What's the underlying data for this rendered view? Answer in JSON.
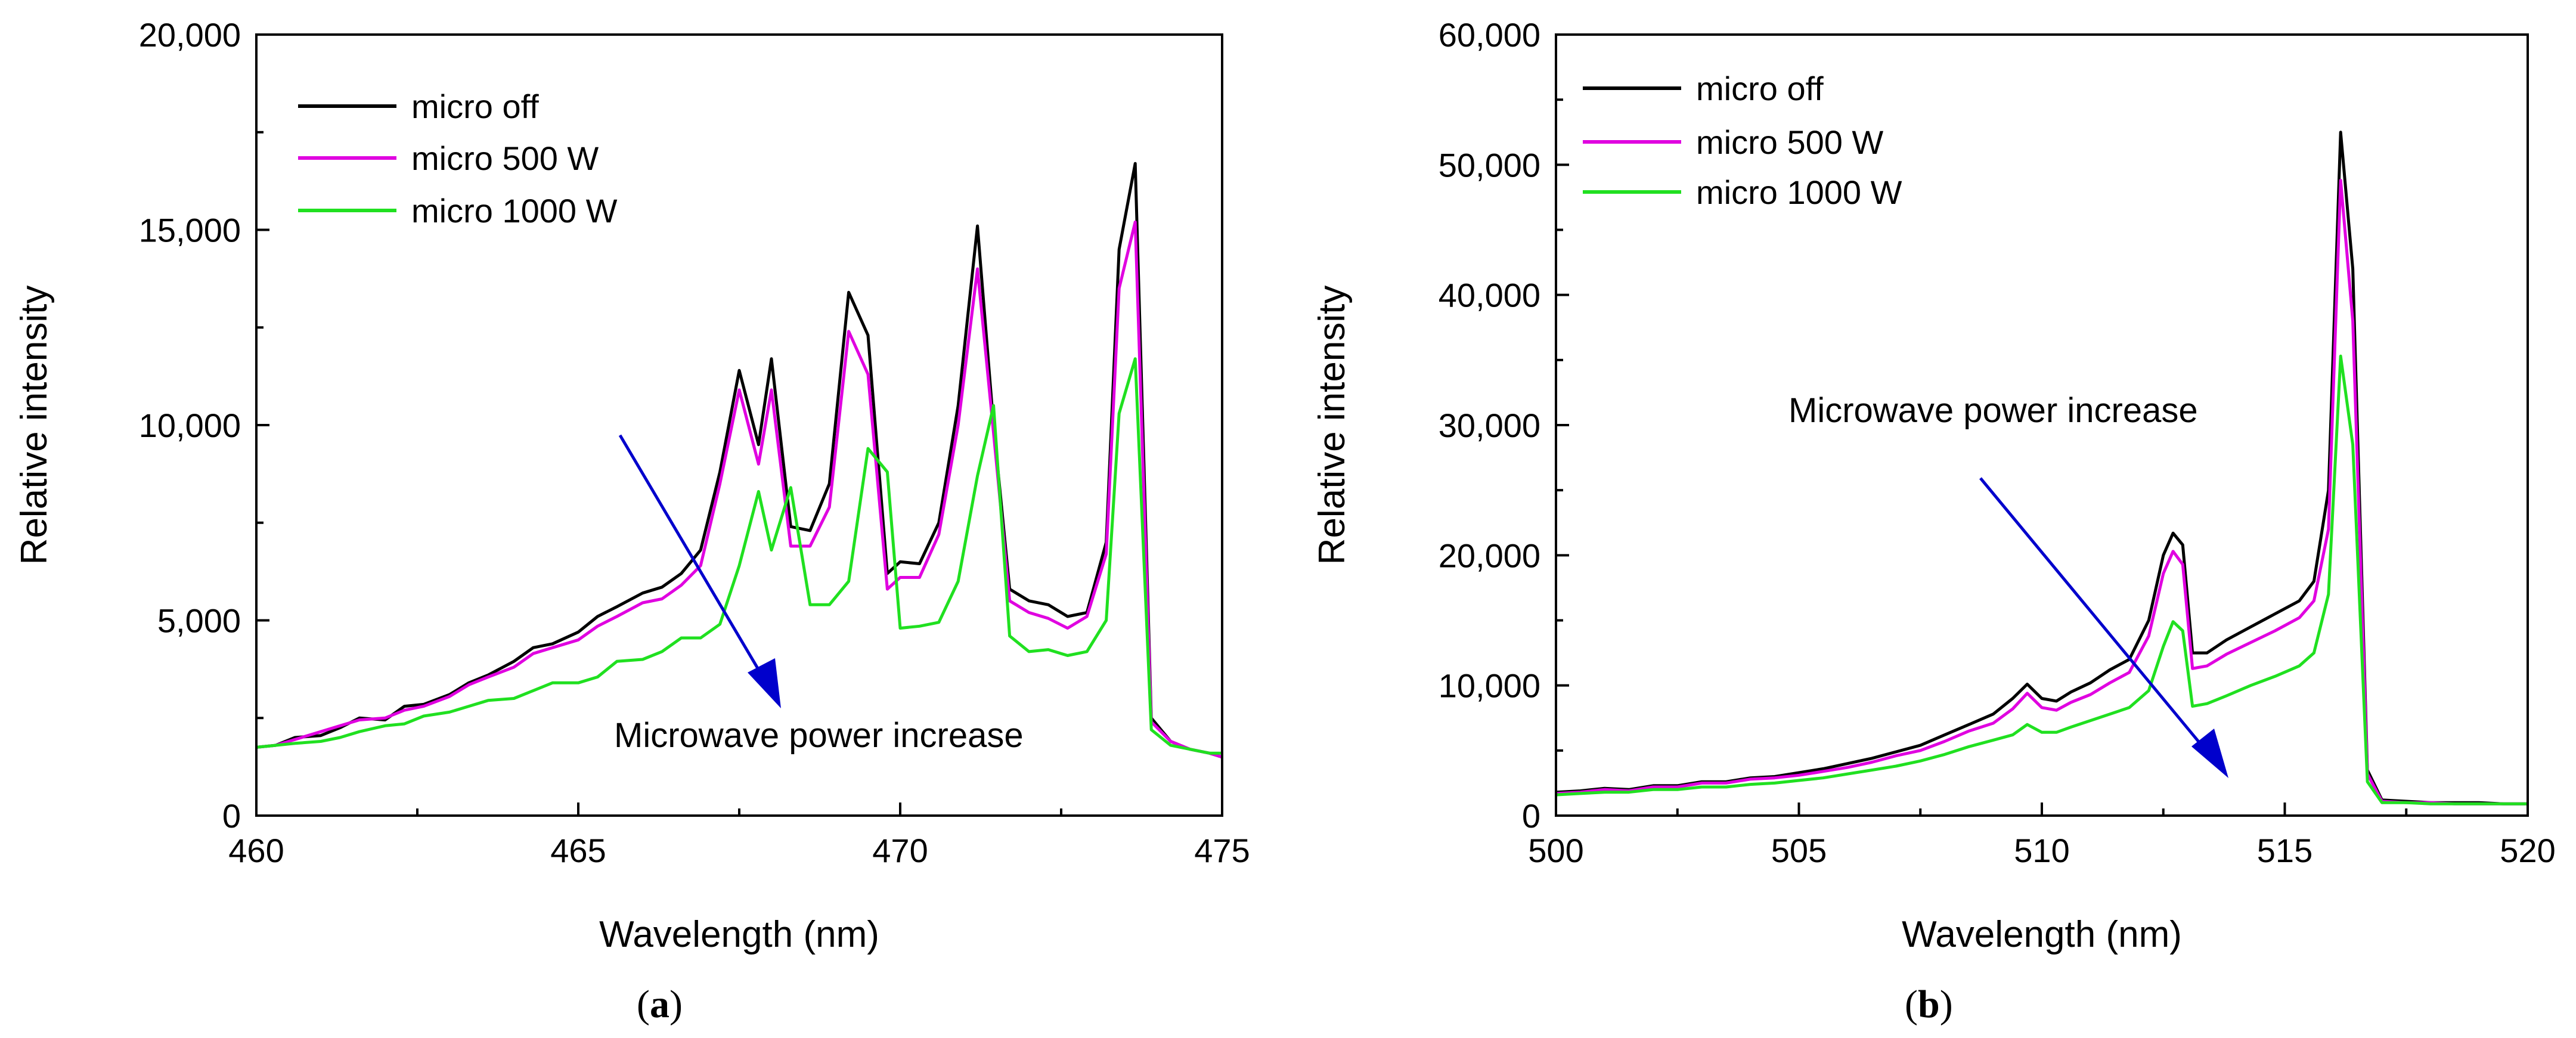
{
  "colors": {
    "micro_off": "#000000",
    "micro_500": "#e000e0",
    "micro_1000": "#20e020",
    "arrow": "#0000cc"
  },
  "chart_data": [
    {
      "type": "line",
      "panel_label": "a",
      "title": "",
      "xlabel": "Wavelength (nm)",
      "ylabel": "Relative intensity",
      "xlim": [
        460,
        475
      ],
      "ylim": [
        0,
        20000
      ],
      "xticks": [
        "460",
        "465",
        "470",
        "475"
      ],
      "yticks": [
        "0",
        "5,000",
        "10,000",
        "15,000",
        "20,000"
      ],
      "grid": false,
      "legend_position": "top-left",
      "annotation": "Microwave power increase",
      "series": [
        {
          "name": "micro off",
          "color_key": "micro_off",
          "x": [
            460.0,
            460.3,
            460.6,
            461.0,
            461.3,
            461.6,
            462.0,
            462.3,
            462.6,
            463.0,
            463.3,
            463.6,
            464.0,
            464.3,
            464.6,
            465.0,
            465.3,
            465.6,
            466.0,
            466.3,
            466.6,
            466.9,
            467.2,
            467.5,
            467.8,
            468.0,
            468.3,
            468.6,
            468.9,
            469.2,
            469.5,
            469.8,
            470.0,
            470.3,
            470.6,
            470.9,
            471.2,
            471.45,
            471.7,
            472.0,
            472.3,
            472.6,
            472.9,
            473.2,
            473.4,
            473.65,
            473.9,
            474.2,
            474.5,
            474.8,
            475.0
          ],
          "y": [
            1750,
            1800,
            2000,
            2050,
            2250,
            2500,
            2450,
            2800,
            2850,
            3100,
            3400,
            3600,
            3950,
            4300,
            4400,
            4700,
            5100,
            5350,
            5700,
            5850,
            6200,
            6800,
            8800,
            11400,
            9500,
            11700,
            7400,
            7300,
            8500,
            13400,
            12300,
            6200,
            6500,
            6450,
            7500,
            10500,
            15100,
            10000,
            5800,
            5500,
            5400,
            5100,
            5200,
            7000,
            14500,
            16700,
            2500,
            1900,
            1700,
            1600,
            1500
          ]
        },
        {
          "name": "micro 500 W",
          "color_key": "micro_500",
          "x": [
            460.0,
            460.3,
            460.6,
            461.0,
            461.3,
            461.6,
            462.0,
            462.3,
            462.6,
            463.0,
            463.3,
            463.6,
            464.0,
            464.3,
            464.6,
            465.0,
            465.3,
            465.6,
            466.0,
            466.3,
            466.6,
            466.9,
            467.2,
            467.5,
            467.8,
            468.0,
            468.3,
            468.6,
            468.9,
            469.2,
            469.5,
            469.8,
            470.0,
            470.3,
            470.6,
            470.9,
            471.2,
            471.45,
            471.7,
            472.0,
            472.3,
            472.6,
            472.9,
            473.2,
            473.4,
            473.65,
            473.9,
            474.2,
            474.5,
            474.8,
            475.0
          ],
          "y": [
            1750,
            1800,
            1950,
            2150,
            2300,
            2450,
            2500,
            2700,
            2800,
            3050,
            3350,
            3550,
            3800,
            4150,
            4300,
            4500,
            4850,
            5100,
            5450,
            5550,
            5900,
            6400,
            8500,
            10900,
            9000,
            10900,
            6900,
            6900,
            7900,
            12400,
            11300,
            5800,
            6100,
            6100,
            7200,
            10000,
            14000,
            9800,
            5500,
            5200,
            5050,
            4800,
            5100,
            6700,
            13500,
            15200,
            2400,
            1900,
            1700,
            1600,
            1500
          ]
        },
        {
          "name": "micro 1000 W",
          "color_key": "micro_1000",
          "x": [
            460.0,
            460.3,
            460.6,
            461.0,
            461.3,
            461.6,
            462.0,
            462.3,
            462.6,
            463.0,
            463.3,
            463.6,
            464.0,
            464.3,
            464.6,
            465.0,
            465.3,
            465.6,
            466.0,
            466.3,
            466.6,
            466.9,
            467.2,
            467.5,
            467.8,
            468.0,
            468.3,
            468.6,
            468.9,
            469.2,
            469.5,
            469.8,
            470.0,
            470.3,
            470.6,
            470.9,
            471.2,
            471.45,
            471.7,
            472.0,
            472.3,
            472.6,
            472.9,
            473.2,
            473.4,
            473.65,
            473.9,
            474.2,
            474.5,
            474.8,
            475.0
          ],
          "y": [
            1750,
            1800,
            1850,
            1900,
            2000,
            2150,
            2300,
            2350,
            2550,
            2650,
            2800,
            2950,
            3000,
            3200,
            3400,
            3400,
            3550,
            3950,
            4000,
            4200,
            4550,
            4550,
            4900,
            6400,
            8300,
            6800,
            8400,
            5400,
            5400,
            6000,
            9400,
            8800,
            4800,
            4850,
            4950,
            6000,
            8700,
            10500,
            4600,
            4200,
            4250,
            4100,
            4200,
            5000,
            10300,
            11700,
            2200,
            1800,
            1700,
            1600,
            1600
          ]
        }
      ]
    },
    {
      "type": "line",
      "panel_label": "b",
      "title": "",
      "xlabel": "Wavelength (nm)",
      "ylabel": "Relative intensity",
      "xlim": [
        500,
        520
      ],
      "ylim": [
        0,
        60000
      ],
      "xticks": [
        "500",
        "505",
        "510",
        "515",
        "520"
      ],
      "yticks": [
        "0",
        "10,000",
        "20,000",
        "30,000",
        "40,000",
        "50,000",
        "60,000"
      ],
      "grid": false,
      "legend_position": "top-left",
      "annotation": "Microwave power increase",
      "series": [
        {
          "name": "micro off",
          "color_key": "micro_off",
          "x": [
            500.0,
            500.5,
            501.0,
            501.5,
            502.0,
            502.5,
            503.0,
            503.5,
            504.0,
            504.5,
            505.0,
            505.5,
            506.0,
            506.5,
            507.0,
            507.5,
            508.0,
            508.5,
            509.0,
            509.4,
            509.7,
            510.0,
            510.3,
            510.6,
            511.0,
            511.4,
            511.8,
            512.2,
            512.5,
            512.7,
            512.9,
            513.1,
            513.4,
            513.8,
            514.3,
            514.8,
            515.3,
            515.6,
            515.9,
            516.15,
            516.4,
            516.7,
            517.0,
            517.5,
            518.0,
            518.5,
            519.0,
            519.5,
            520.0
          ],
          "y": [
            1800,
            1900,
            2100,
            2000,
            2300,
            2300,
            2600,
            2600,
            2900,
            3000,
            3300,
            3600,
            4000,
            4400,
            4900,
            5400,
            6200,
            7000,
            7800,
            9000,
            10100,
            9000,
            8800,
            9500,
            10200,
            11200,
            12000,
            15000,
            20000,
            21700,
            20800,
            12500,
            12500,
            13500,
            14500,
            15500,
            16500,
            18000,
            25000,
            52500,
            42000,
            3500,
            1200,
            1100,
            1000,
            1000,
            1000,
            900,
            900
          ]
        },
        {
          "name": "micro 500 W",
          "color_key": "micro_500",
          "x": [
            500.0,
            500.5,
            501.0,
            501.5,
            502.0,
            502.5,
            503.0,
            503.5,
            504.0,
            504.5,
            505.0,
            505.5,
            506.0,
            506.5,
            507.0,
            507.5,
            508.0,
            508.5,
            509.0,
            509.4,
            509.7,
            510.0,
            510.3,
            510.6,
            511.0,
            511.4,
            511.8,
            512.2,
            512.5,
            512.7,
            512.9,
            513.1,
            513.4,
            513.8,
            514.3,
            514.8,
            515.3,
            515.6,
            515.9,
            516.15,
            516.4,
            516.7,
            517.0,
            517.5,
            518.0,
            518.5,
            519.0,
            519.5,
            520.0
          ],
          "y": [
            1700,
            1800,
            2000,
            1900,
            2200,
            2200,
            2500,
            2500,
            2800,
            2900,
            3100,
            3400,
            3700,
            4100,
            4600,
            5000,
            5700,
            6500,
            7100,
            8200,
            9400,
            8300,
            8100,
            8700,
            9300,
            10200,
            11000,
            13800,
            18600,
            20300,
            19300,
            11300,
            11500,
            12400,
            13300,
            14200,
            15200,
            16500,
            22000,
            48800,
            38000,
            3200,
            1100,
            1000,
            1000,
            900,
            900,
            900,
            900
          ]
        },
        {
          "name": "micro 1000 W",
          "color_key": "micro_1000",
          "x": [
            500.0,
            500.5,
            501.0,
            501.5,
            502.0,
            502.5,
            503.0,
            503.5,
            504.0,
            504.5,
            505.0,
            505.5,
            506.0,
            506.5,
            507.0,
            507.5,
            508.0,
            508.5,
            509.0,
            509.4,
            509.7,
            510.0,
            510.3,
            510.6,
            511.0,
            511.4,
            511.8,
            512.2,
            512.5,
            512.7,
            512.9,
            513.1,
            513.4,
            513.8,
            514.3,
            514.8,
            515.3,
            515.6,
            515.9,
            516.15,
            516.4,
            516.7,
            517.0,
            517.5,
            518.0,
            518.5,
            519.0,
            519.5,
            520.0
          ],
          "y": [
            1600,
            1700,
            1800,
            1800,
            2000,
            2000,
            2200,
            2200,
            2400,
            2500,
            2700,
            2900,
            3200,
            3500,
            3800,
            4200,
            4700,
            5300,
            5800,
            6200,
            7000,
            6400,
            6400,
            6800,
            7300,
            7800,
            8300,
            9600,
            13000,
            14900,
            14200,
            8400,
            8600,
            9200,
            10000,
            10700,
            11500,
            12500,
            17000,
            35300,
            28500,
            2600,
            1000,
            1000,
            900,
            900,
            900,
            900,
            900
          ]
        }
      ]
    }
  ]
}
